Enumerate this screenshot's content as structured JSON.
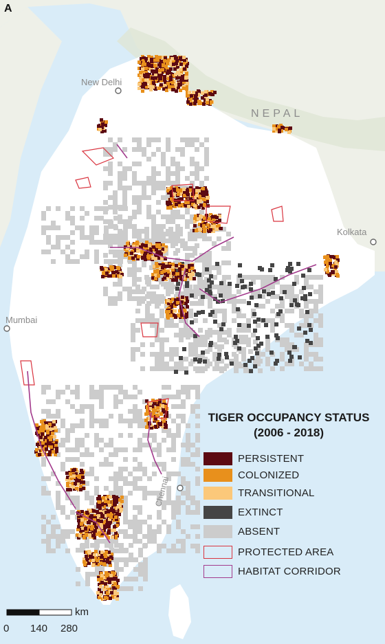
{
  "panel_label": "A",
  "places": {
    "new_delhi": "New Delhi",
    "nepal": "NEPAL",
    "kolkata": "Kolkata",
    "mumbai": "Mumbai",
    "chennai": "Chennai"
  },
  "legend": {
    "title_line1": "TIGER OCCUPANCY STATUS",
    "title_line2": "(2006 - 2018)",
    "items": [
      {
        "label": "PERSISTENT",
        "color": "#5c0a12",
        "style": "fill"
      },
      {
        "label": "COLONIZED",
        "color": "#e8901c",
        "style": "fill"
      },
      {
        "label": "TRANSITIONAL",
        "color": "#fbc87a",
        "style": "fill"
      },
      {
        "label": "EXTINCT",
        "color": "#454545",
        "style": "fill"
      },
      {
        "label": "ABSENT",
        "color": "#cccccc",
        "style": "fill"
      },
      {
        "label": "PROTECTED AREA",
        "color": "#d9343f",
        "style": "outline"
      },
      {
        "label": "HABITAT CORRIDOR",
        "color": "#a23a8c",
        "style": "outline"
      }
    ]
  },
  "scale_bar": {
    "unit": "km",
    "ticks": [
      "0",
      "140",
      "280"
    ]
  },
  "colors": {
    "sea": "#d9ecf8",
    "land_india": "#ffffff",
    "land_outside": "#eef0e8",
    "terrain": "#dfe6d4"
  },
  "icons": [
    "city-marker-icon"
  ]
}
